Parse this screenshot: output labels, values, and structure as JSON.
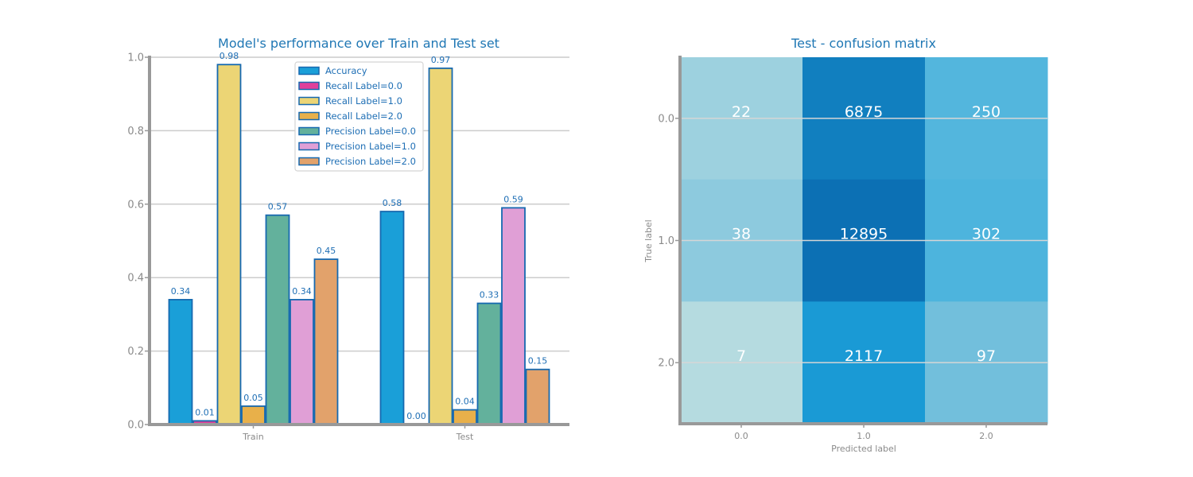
{
  "chart_data": [
    {
      "type": "bar",
      "title": "Model's performance over Train and Test set",
      "categories": [
        "Train",
        "Test"
      ],
      "ylim": [
        0,
        1.0
      ],
      "yticks": [
        "0.0",
        "0.2",
        "0.4",
        "0.6",
        "0.8",
        "1.0"
      ],
      "grid": "horizontal",
      "legend_position": "top-center",
      "series": [
        {
          "name": "Accuracy",
          "color": "#1a9fd8",
          "values": [
            0.34,
            0.58
          ],
          "labels": [
            "0.34",
            "0.58"
          ]
        },
        {
          "name": "Recall Label=0.0",
          "color": "#e0409a",
          "values": [
            0.01,
            0.0
          ],
          "labels": [
            "0.01",
            "0.00"
          ]
        },
        {
          "name": "Recall Label=1.0",
          "color": "#ecd575",
          "values": [
            0.98,
            0.97
          ],
          "labels": [
            "0.98",
            "0.97"
          ]
        },
        {
          "name": "Recall Label=2.0",
          "color": "#e8b04a",
          "values": [
            0.05,
            0.04
          ],
          "labels": [
            "0.05",
            "0.04"
          ]
        },
        {
          "name": "Precision Label=0.0",
          "color": "#63b19c",
          "values": [
            0.57,
            0.33
          ],
          "labels": [
            "0.57",
            "0.33"
          ]
        },
        {
          "name": "Precision Label=1.0",
          "color": "#e09fd6",
          "values": [
            0.34,
            0.59
          ],
          "labels": [
            "0.34",
            "0.59"
          ]
        },
        {
          "name": "Precision Label=2.0",
          "color": "#e2a26b",
          "values": [
            0.45,
            0.15
          ],
          "labels": [
            "0.45",
            "0.15"
          ]
        }
      ]
    },
    {
      "type": "heatmap",
      "title": "Test - confusion matrix",
      "xlabel": "Predicted label",
      "ylabel": "True label",
      "x_categories": [
        "0.0",
        "1.0",
        "2.0"
      ],
      "y_categories": [
        "0.0",
        "1.0",
        "2.0"
      ],
      "values": [
        [
          22,
          6875,
          250
        ],
        [
          38,
          12895,
          302
        ],
        [
          7,
          2117,
          97
        ]
      ],
      "labels": [
        [
          "22",
          "6875",
          "250"
        ],
        [
          "38",
          "12895",
          "302"
        ],
        [
          "7",
          "2117",
          "97"
        ]
      ],
      "colormap": [
        "#c3e0e3",
        "#b3dae0",
        "#6ebddc",
        "#1ea7df",
        "#0c70b4"
      ]
    }
  ]
}
